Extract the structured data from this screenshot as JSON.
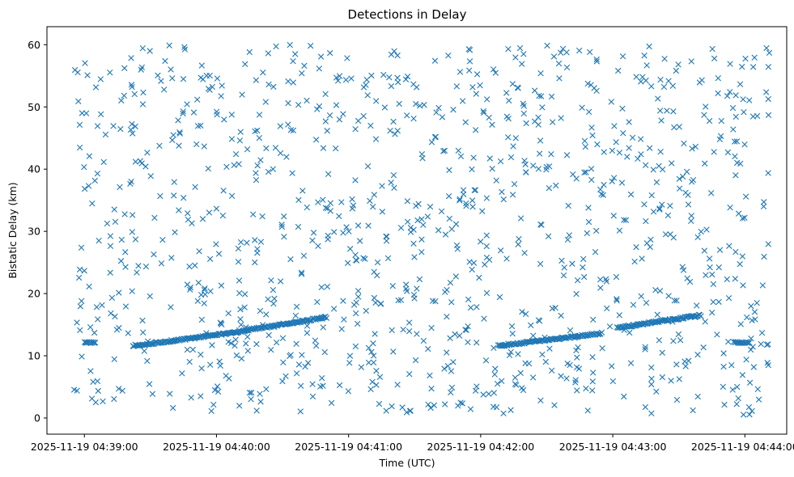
{
  "chart_data": {
    "type": "scatter",
    "title": "Detections in Delay",
    "xlabel": "Time (UTC)",
    "ylabel": "Bistatic Delay (km)",
    "x_tick_labels": [
      "2025-11-19 04:39:00",
      "2025-11-19 04:40:00",
      "2025-11-19 04:41:00",
      "2025-11-19 04:42:00",
      "2025-11-19 04:43:00",
      "2025-11-19 04:44:00"
    ],
    "y_ticks": [
      0,
      10,
      20,
      30,
      40,
      50,
      60
    ],
    "xlim": [
      "2025-11-19 04:38:43",
      "2025-11-19 04:44:19"
    ],
    "ylim": [
      -2.6,
      62.9
    ],
    "marker": "x",
    "color": "#1f77b4",
    "grid": false,
    "legend": "none",
    "series": [
      {
        "track_segments": [
          {
            "x_start": "2025-11-19 04:39:00",
            "x_end": "2025-11-19 04:39:05",
            "y_start": 12.1,
            "y_end": 12.1
          },
          {
            "x_start": "2025-11-19 04:39:22",
            "x_end": "2025-11-19 04:40:10",
            "y_start": 11.6,
            "y_end": 13.8
          },
          {
            "x_start": "2025-11-19 04:40:10",
            "x_end": "2025-11-19 04:40:50",
            "y_start": 13.9,
            "y_end": 16.2
          },
          {
            "x_start": "2025-11-19 04:42:08",
            "x_end": "2025-11-19 04:42:55",
            "y_start": 11.6,
            "y_end": 13.6
          },
          {
            "x_start": "2025-11-19 04:43:02",
            "x_end": "2025-11-19 04:43:40",
            "y_start": 14.5,
            "y_end": 16.5
          },
          {
            "x_start": "2025-11-19 04:43:55",
            "x_end": "2025-11-19 04:44:02",
            "y_start": 12.1,
            "y_end": 12.1
          }
        ],
        "clutter_points": 1100,
        "clutter_y_range": [
          0.5,
          60
        ]
      }
    ]
  }
}
